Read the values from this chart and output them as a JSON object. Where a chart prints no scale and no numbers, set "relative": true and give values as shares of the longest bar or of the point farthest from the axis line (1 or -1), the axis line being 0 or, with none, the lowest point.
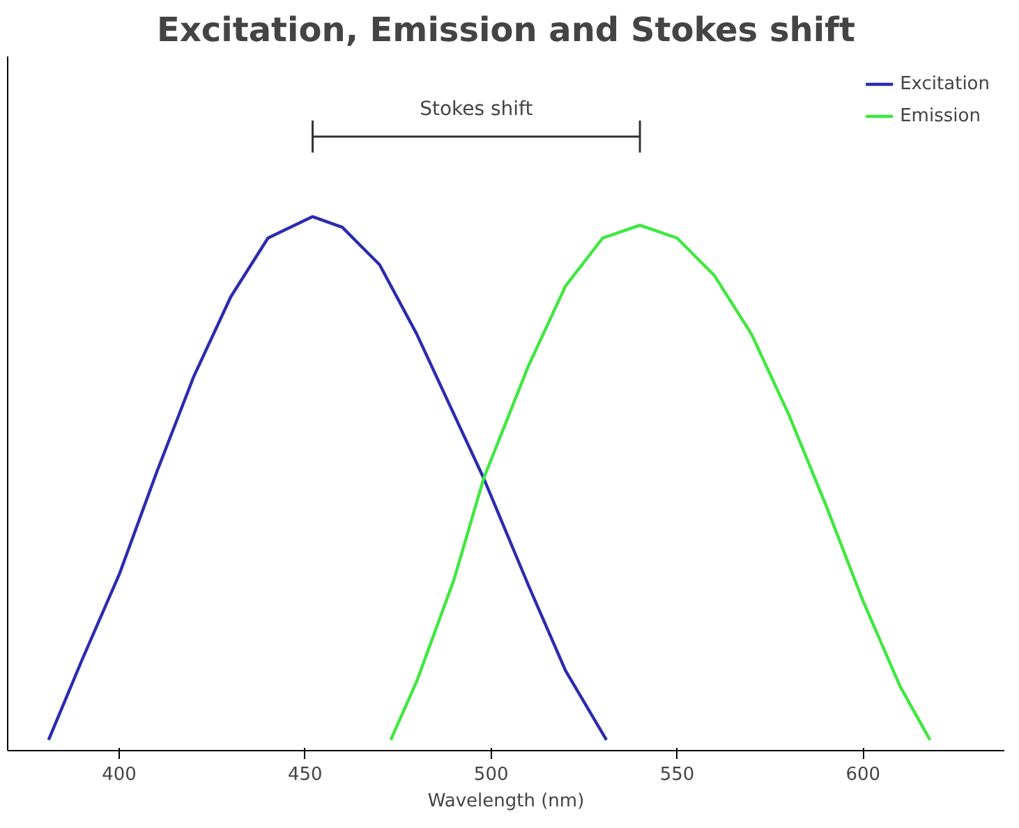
{
  "chart_data": {
    "type": "line",
    "title": "Excitation, Emission and Stokes shift",
    "xlabel": "Wavelength (nm)",
    "relative": true,
    "xlim": [
      370,
      638
    ],
    "xticks": [
      400,
      450,
      500,
      550,
      600
    ],
    "grid": false,
    "legend": "top right",
    "marker": "none",
    "line_style": "solid",
    "annotations": [
      "Stokes shift"
    ],
    "series": [
      {
        "name": "Excitation",
        "color": "#2b2bb0",
        "x": [
          381,
          390,
          400,
          410,
          420,
          430,
          440,
          452,
          460,
          470,
          480,
          490,
          498,
          510,
          520,
          531
        ],
        "values": [
          0.02,
          0.17,
          0.33,
          0.52,
          0.7,
          0.85,
          0.96,
          1.0,
          0.98,
          0.91,
          0.78,
          0.63,
          0.51,
          0.31,
          0.15,
          0.02
        ]
      },
      {
        "name": "Emission",
        "color": "#3ee83e",
        "x": [
          473,
          480,
          490,
          498,
          510,
          520,
          530,
          540,
          550,
          560,
          570,
          580,
          590,
          600,
          610,
          618
        ],
        "values": [
          0.02,
          0.13,
          0.32,
          0.51,
          0.72,
          0.87,
          0.96,
          0.984,
          0.96,
          0.89,
          0.78,
          0.63,
          0.46,
          0.28,
          0.12,
          0.02
        ]
      }
    ]
  }
}
